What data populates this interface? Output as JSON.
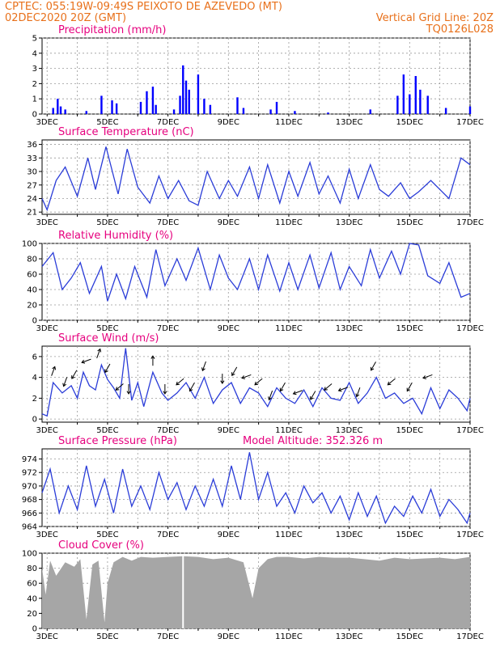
{
  "header": {
    "line1": "CPTEC:   055:19W-09:49S   PEIXOTO DE AZEVEDO (MT)",
    "line2": "02DEC2020 20Z (GMT)",
    "grid_line": "Vertical Grid Line: 20Z",
    "run_id": "TQ0126L028"
  },
  "colors": {
    "header": "#e8701a",
    "title": "#e6007e",
    "bar": "#0000ff",
    "line": "#2a3cd8",
    "cloud": "#a6a6a6",
    "grid": "#999999"
  },
  "chart_data": [
    {
      "type": "bar",
      "title": "Precipitation (mm/h)",
      "ylim": [
        0,
        5
      ],
      "yticks": [
        0,
        1,
        2,
        3,
        4,
        5
      ],
      "xticks": [
        "3DEC",
        "5DEC",
        "7DEC",
        "9DEC",
        "11DEC",
        "13DEC",
        "15DEC",
        "17DEC"
      ],
      "x_day_range": [
        2.833,
        17.0
      ],
      "events": [
        {
          "day": 3.2,
          "v": 0.4
        },
        {
          "day": 3.35,
          "v": 1.0
        },
        {
          "day": 3.45,
          "v": 0.5
        },
        {
          "day": 3.6,
          "v": 0.3
        },
        {
          "day": 4.3,
          "v": 0.2
        },
        {
          "day": 4.8,
          "v": 1.2
        },
        {
          "day": 5.15,
          "v": 0.9
        },
        {
          "day": 5.3,
          "v": 0.7
        },
        {
          "day": 6.1,
          "v": 0.8
        },
        {
          "day": 6.3,
          "v": 1.5
        },
        {
          "day": 6.5,
          "v": 1.8
        },
        {
          "day": 6.6,
          "v": 0.6
        },
        {
          "day": 7.2,
          "v": 0.3
        },
        {
          "day": 7.4,
          "v": 1.2
        },
        {
          "day": 7.5,
          "v": 3.2
        },
        {
          "day": 7.6,
          "v": 2.2
        },
        {
          "day": 7.7,
          "v": 1.6
        },
        {
          "day": 8.0,
          "v": 2.6
        },
        {
          "day": 8.2,
          "v": 1.0
        },
        {
          "day": 8.4,
          "v": 0.6
        },
        {
          "day": 9.3,
          "v": 1.1
        },
        {
          "day": 9.5,
          "v": 0.4
        },
        {
          "day": 10.4,
          "v": 0.3
        },
        {
          "day": 10.6,
          "v": 0.8
        },
        {
          "day": 11.2,
          "v": 0.2
        },
        {
          "day": 12.3,
          "v": 0.1
        },
        {
          "day": 13.7,
          "v": 0.3
        },
        {
          "day": 14.6,
          "v": 1.2
        },
        {
          "day": 14.8,
          "v": 2.6
        },
        {
          "day": 15.0,
          "v": 1.3
        },
        {
          "day": 15.2,
          "v": 2.5
        },
        {
          "day": 15.35,
          "v": 1.6
        },
        {
          "day": 15.6,
          "v": 1.2
        },
        {
          "day": 16.2,
          "v": 0.4
        },
        {
          "day": 17.0,
          "v": 0.5
        }
      ]
    },
    {
      "type": "line",
      "title": "Surface Temperature (nC)",
      "ylim": [
        20.5,
        37
      ],
      "yticks": [
        21,
        24,
        27,
        30,
        33,
        36
      ],
      "xticks": [
        "3DEC",
        "5DEC",
        "7DEC",
        "9DEC",
        "11DEC",
        "13DEC",
        "15DEC",
        "17DEC"
      ],
      "x_day_range": [
        2.833,
        17.0
      ],
      "x": [
        2.833,
        3.0,
        3.3,
        3.6,
        4.0,
        4.35,
        4.6,
        4.95,
        5.35,
        5.65,
        6.0,
        6.4,
        6.7,
        7.0,
        7.35,
        7.7,
        8.0,
        8.3,
        8.7,
        9.0,
        9.3,
        9.7,
        10.0,
        10.3,
        10.7,
        11.0,
        11.3,
        11.7,
        12.0,
        12.3,
        12.7,
        13.0,
        13.3,
        13.7,
        14.0,
        14.3,
        14.7,
        15.0,
        15.3,
        15.7,
        16.0,
        16.3,
        16.7,
        17.0
      ],
      "y": [
        24,
        21.5,
        28,
        31,
        24.5,
        33,
        26,
        35.5,
        25,
        35,
        26.5,
        23,
        29,
        24,
        28,
        23.5,
        22.5,
        30,
        24,
        28,
        24.5,
        31,
        24,
        31.5,
        23,
        30,
        24.5,
        32,
        25,
        29,
        23,
        30.5,
        24,
        31.5,
        26,
        24.5,
        27.5,
        24,
        25.5,
        28,
        26,
        24,
        33,
        31.5
      ]
    },
    {
      "type": "line",
      "title": "Relative Humidity (%)",
      "ylim": [
        0,
        100
      ],
      "yticks": [
        0,
        20,
        40,
        60,
        80,
        100
      ],
      "xticks": [
        "3DEC",
        "5DEC",
        "7DEC",
        "9DEC",
        "11DEC",
        "13DEC",
        "15DEC",
        "17DEC"
      ],
      "x_day_range": [
        2.833,
        17.0
      ],
      "x": [
        2.833,
        3.2,
        3.5,
        3.8,
        4.1,
        4.4,
        4.8,
        5.0,
        5.3,
        5.6,
        5.9,
        6.3,
        6.6,
        6.9,
        7.3,
        7.6,
        8.0,
        8.4,
        8.7,
        9.0,
        9.3,
        9.7,
        10.0,
        10.3,
        10.7,
        11.0,
        11.3,
        11.7,
        12.0,
        12.4,
        12.7,
        13.0,
        13.4,
        13.7,
        14.0,
        14.4,
        14.7,
        15.0,
        15.3,
        15.6,
        16.0,
        16.3,
        16.7,
        17.0
      ],
      "y": [
        70,
        88,
        40,
        55,
        75,
        35,
        70,
        25,
        60,
        28,
        70,
        30,
        92,
        45,
        80,
        52,
        94,
        40,
        85,
        55,
        40,
        80,
        40,
        85,
        38,
        75,
        40,
        85,
        42,
        88,
        40,
        70,
        45,
        92,
        55,
        90,
        60,
        100,
        98,
        58,
        48,
        75,
        30,
        35
      ]
    },
    {
      "type": "line",
      "title": "Surface Wind (m/s)",
      "ylim": [
        -0.3,
        7
      ],
      "yticks": [
        0,
        2,
        4,
        6
      ],
      "xticks": [
        "3DEC",
        "5DEC",
        "7DEC",
        "9DEC",
        "11DEC",
        "13DEC",
        "15DEC",
        "17DEC"
      ],
      "x_day_range": [
        2.833,
        17.0
      ],
      "x": [
        2.833,
        3.0,
        3.2,
        3.5,
        3.8,
        4.0,
        4.2,
        4.4,
        4.6,
        4.8,
        5.0,
        5.2,
        5.4,
        5.6,
        5.8,
        6.0,
        6.2,
        6.5,
        6.8,
        7.0,
        7.3,
        7.6,
        7.9,
        8.2,
        8.5,
        8.8,
        9.1,
        9.4,
        9.7,
        10.0,
        10.3,
        10.6,
        10.9,
        11.2,
        11.5,
        11.8,
        12.1,
        12.4,
        12.7,
        13.0,
        13.3,
        13.6,
        13.9,
        14.2,
        14.5,
        14.8,
        15.1,
        15.4,
        15.7,
        16.0,
        16.3,
        16.6,
        16.9,
        17.0
      ],
      "y": [
        0.5,
        0.3,
        3.5,
        2.5,
        3.2,
        2.0,
        4.5,
        3.2,
        2.8,
        5.2,
        3.8,
        3.0,
        2.0,
        6.8,
        1.8,
        3.5,
        1.2,
        4.5,
        2.5,
        1.8,
        2.5,
        3.5,
        2.0,
        4.0,
        1.5,
        2.8,
        3.5,
        1.5,
        3.0,
        2.5,
        1.2,
        3.0,
        2.0,
        1.5,
        2.8,
        1.2,
        3.0,
        2.0,
        1.8,
        3.5,
        1.5,
        2.5,
        4.0,
        2.0,
        2.5,
        1.5,
        2.0,
        0.5,
        3.0,
        1.0,
        2.8,
        2.0,
        0.8,
        2.0
      ],
      "arrows_dir_deg": [
        20,
        200,
        210,
        250,
        20,
        210,
        230,
        180,
        0,
        180,
        230,
        210,
        200,
        180,
        210,
        250,
        230,
        200,
        210,
        250,
        210,
        230,
        250,
        200,
        210,
        230,
        210,
        250
      ],
      "arrows_day": [
        3.2,
        3.6,
        3.9,
        4.3,
        4.7,
        5.0,
        5.4,
        5.7,
        6.5,
        6.9,
        7.4,
        7.8,
        8.2,
        8.8,
        9.2,
        9.6,
        10.0,
        10.4,
        10.8,
        11.3,
        11.8,
        12.3,
        12.8,
        13.3,
        13.8,
        14.4,
        15.0,
        15.6
      ]
    },
    {
      "type": "line",
      "title": "Surface Pressure (hPa)",
      "subtitle": "Model Altitude: 352.326 m",
      "ylim": [
        964,
        975.5
      ],
      "yticks": [
        964,
        966,
        968,
        970,
        972,
        974
      ],
      "xticks": [
        "3DEC",
        "5DEC",
        "7DEC",
        "9DEC",
        "11DEC",
        "13DEC",
        "15DEC",
        "17DEC"
      ],
      "x_day_range": [
        2.833,
        17.0
      ],
      "x": [
        2.833,
        3.1,
        3.4,
        3.7,
        4.0,
        4.3,
        4.6,
        4.9,
        5.2,
        5.5,
        5.8,
        6.1,
        6.4,
        6.7,
        7.0,
        7.3,
        7.6,
        7.9,
        8.2,
        8.5,
        8.8,
        9.1,
        9.4,
        9.7,
        10.0,
        10.3,
        10.6,
        10.9,
        11.2,
        11.5,
        11.8,
        12.1,
        12.4,
        12.7,
        13.0,
        13.3,
        13.6,
        13.9,
        14.2,
        14.5,
        14.8,
        15.1,
        15.4,
        15.7,
        16.0,
        16.3,
        16.6,
        16.9,
        17.0
      ],
      "y": [
        969,
        972.5,
        966,
        970,
        966.5,
        973,
        967,
        971,
        966,
        972.5,
        967,
        970,
        966.5,
        972,
        968,
        970.5,
        966.5,
        970,
        967,
        971,
        967,
        973,
        968,
        975,
        968,
        972,
        967,
        969,
        966,
        970,
        967.5,
        969,
        966,
        968.5,
        965,
        969,
        965.5,
        968.5,
        964.5,
        967,
        965.5,
        968.5,
        966,
        969.5,
        965.5,
        968,
        966.5,
        964.5,
        966
      ]
    },
    {
      "type": "area",
      "title": "Cloud Cover (%)",
      "ylim": [
        0,
        100
      ],
      "yticks": [
        0,
        20,
        40,
        60,
        80,
        100
      ],
      "xticks": [
        "3DEC",
        "5DEC",
        "7DEC",
        "9DEC",
        "11DEC",
        "13DEC",
        "15DEC",
        "17DEC"
      ],
      "x_day_range": [
        2.833,
        17.0
      ],
      "x": [
        2.833,
        2.95,
        3.1,
        3.3,
        3.6,
        3.9,
        4.1,
        4.3,
        4.5,
        4.7,
        4.9,
        5.0,
        5.2,
        5.5,
        5.8,
        6.1,
        6.5,
        7.0,
        7.5,
        8.0,
        8.5,
        9.0,
        9.5,
        9.8,
        10.0,
        10.3,
        10.6,
        11.0,
        11.5,
        12.0,
        12.5,
        13.0,
        13.5,
        14.0,
        14.5,
        15.0,
        15.5,
        16.0,
        16.5,
        17.0
      ],
      "y": [
        80,
        45,
        90,
        70,
        88,
        82,
        92,
        12,
        85,
        90,
        8,
        60,
        88,
        95,
        90,
        95,
        94,
        95,
        96,
        95,
        92,
        94,
        88,
        40,
        80,
        92,
        95,
        95,
        93,
        95,
        94,
        94,
        92,
        90,
        94,
        92,
        93,
        94,
        92,
        95
      ]
    }
  ]
}
